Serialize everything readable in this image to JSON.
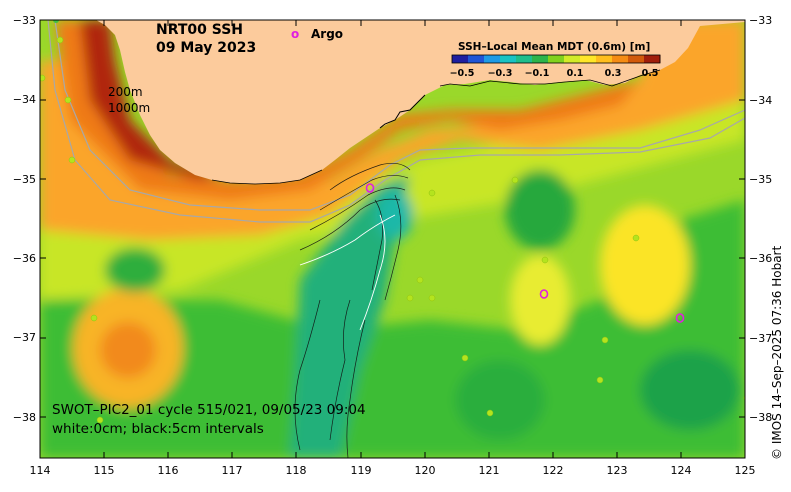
{
  "title": {
    "line1": "NRT00 SSH",
    "line2": "09 May 2023"
  },
  "legend": {
    "argo_marker": "o",
    "argo_label": "Argo",
    "isobath_200": "200m",
    "isobath_1000": "1000m"
  },
  "colorbar": {
    "title": "SSH–Local Mean MDT (0.6m) [m]",
    "ticks": [
      "−0.5",
      "−0.3",
      "−0.1",
      "0.1",
      "0.3",
      "0.5"
    ],
    "colors": [
      "#1e1ea0",
      "#1f55d6",
      "#1e9be6",
      "#19c3c3",
      "#1ebe8c",
      "#2db44b",
      "#82d21e",
      "#d2eb28",
      "#ffe628",
      "#ffbe1e",
      "#f58c14",
      "#d25a0a",
      "#a01e0a"
    ]
  },
  "annotation": {
    "line1": "SWOT–PIC2_01 cycle 515/021, 09/05/23 09:04",
    "line2": "white:0cm; black:5cm intervals"
  },
  "credit": "© IMOS 14–Sep–2025 07:36 Hobart",
  "axes": {
    "x_ticks": [
      "114",
      "115",
      "116",
      "117",
      "118",
      "119",
      "120",
      "121",
      "122",
      "123",
      "124",
      "125"
    ],
    "y_ticks": [
      "−33",
      "−34",
      "−35",
      "−36",
      "−37",
      "−38"
    ]
  },
  "colors": {
    "land": "#fccb9c",
    "argo": "#e020e0"
  }
}
